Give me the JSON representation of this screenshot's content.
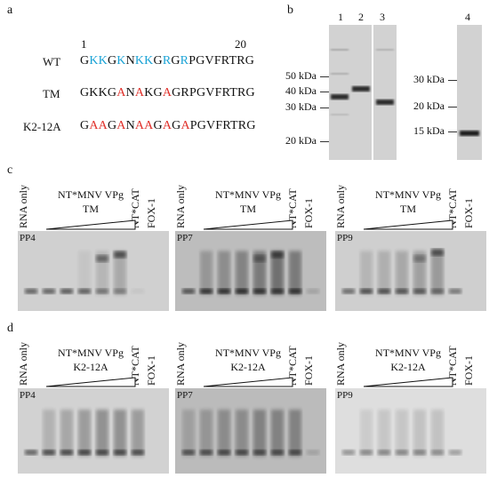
{
  "panel_labels": {
    "a": "a",
    "b": "b",
    "c": "c",
    "d": "d"
  },
  "panel_a": {
    "pos_start": "1",
    "pos_end": "20",
    "rows": [
      {
        "label": "WT",
        "segments": [
          {
            "t": "G",
            "c": "k"
          },
          {
            "t": "KK",
            "c": "b"
          },
          {
            "t": "G",
            "c": "k"
          },
          {
            "t": "K",
            "c": "b"
          },
          {
            "t": "N",
            "c": "k"
          },
          {
            "t": "KK",
            "c": "b"
          },
          {
            "t": "G",
            "c": "k"
          },
          {
            "t": "R",
            "c": "b"
          },
          {
            "t": "G",
            "c": "k"
          },
          {
            "t": "R",
            "c": "b"
          },
          {
            "t": "PGVFRTRG",
            "c": "k"
          }
        ]
      },
      {
        "label": "TM",
        "segments": [
          {
            "t": "GKKG",
            "c": "k"
          },
          {
            "t": "A",
            "c": "r"
          },
          {
            "t": "N",
            "c": "k"
          },
          {
            "t": "A",
            "c": "r"
          },
          {
            "t": "KG",
            "c": "k"
          },
          {
            "t": "A",
            "c": "r"
          },
          {
            "t": "GRPGVFRTRG",
            "c": "k"
          }
        ]
      },
      {
        "label": "K2-12A",
        "segments": [
          {
            "t": "G",
            "c": "k"
          },
          {
            "t": "AA",
            "c": "r"
          },
          {
            "t": "G",
            "c": "k"
          },
          {
            "t": "A",
            "c": "r"
          },
          {
            "t": "N",
            "c": "k"
          },
          {
            "t": "AA",
            "c": "r"
          },
          {
            "t": "G",
            "c": "k"
          },
          {
            "t": "A",
            "c": "r"
          },
          {
            "t": "G",
            "c": "k"
          },
          {
            "t": "A",
            "c": "r"
          },
          {
            "t": "PGVFRTRG",
            "c": "k"
          }
        ]
      }
    ]
  },
  "panel_b": {
    "lane_numbers": [
      "1",
      "2",
      "3",
      "4"
    ],
    "markers_left": [
      "50 kDa",
      "40 kDa",
      "30 kDa",
      "20 kDa"
    ],
    "markers_right": [
      "30 kDa",
      "20 kDa",
      "15 kDa"
    ]
  },
  "panel_c": {
    "gels": [
      {
        "pp": "PP4",
        "title_line1": "NT*MNV VPg",
        "title_line2": "TM",
        "rna_only": "RNA only",
        "ntcat": "NT*CAT",
        "fox": "FOX-1"
      },
      {
        "pp": "PP7",
        "title_line1": "NT*MNV VPg",
        "title_line2": "TM",
        "rna_only": "RNA only",
        "ntcat": "NT*CAT",
        "fox": "FOX-1"
      },
      {
        "pp": "PP9",
        "title_line1": "NT*MNV VPg",
        "title_line2": "TM",
        "rna_only": "RNA only",
        "ntcat": "NT*CAT",
        "fox": "FOX-1"
      }
    ]
  },
  "panel_d": {
    "gels": [
      {
        "pp": "PP4",
        "title_line1": "NT*MNV VPg",
        "title_line2": "K2-12A",
        "rna_only": "RNA only",
        "ntcat": "NT*CAT",
        "fox": "FOX-1"
      },
      {
        "pp": "PP7",
        "title_line1": "NT*MNV VPg",
        "title_line2": "K2-12A",
        "rna_only": "RNA only",
        "ntcat": "NT*CAT",
        "fox": "FOX-1"
      },
      {
        "pp": "PP9",
        "title_line1": "NT*MNV VPg",
        "title_line2": "K2-12A",
        "rna_only": "RNA only",
        "ntcat": "NT*CAT",
        "fox": "FOX-1"
      }
    ]
  }
}
